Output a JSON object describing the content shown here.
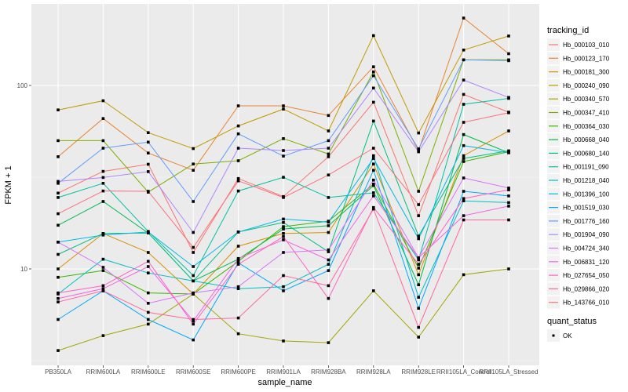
{
  "chart_data": {
    "type": "line",
    "title": "",
    "xlabel": "sample_name",
    "ylabel": "FPKM + 1",
    "y_scale": "log10",
    "ylim": [
      2.7,
      260
    ],
    "y_ticks": [
      10,
      100
    ],
    "y_tick_labels": [
      "10",
      "100"
    ],
    "grid": true,
    "legend_position": "right",
    "categories": [
      "PB350LA",
      "RRIM600LA",
      "RRIM600LE",
      "RRIM600SE",
      "RRIM600PE",
      "RRIM901LA",
      "RRIM928BA",
      "RRIM928LA",
      "RRIM928LE",
      "RRII105LA_Control",
      "RRII105LA_Stressed"
    ],
    "legend_title": "tracking_id",
    "shape_legend": {
      "title": "quant_status",
      "items": [
        "OK"
      ]
    },
    "series": [
      {
        "name": "Hb_000103_010",
        "color": "#F8766D",
        "values": [
          25.9,
          34.0,
          37.2,
          12.3,
          31.1,
          24.8,
          40.9,
          81.0,
          19.5,
          89.4,
          71.5
        ]
      },
      {
        "name": "Hb_000123_170",
        "color": "#EA8331",
        "values": [
          40.9,
          66.0,
          42.8,
          34.5,
          77.4,
          77.4,
          68.6,
          126.4,
          44.1,
          233.0,
          149.0
        ]
      },
      {
        "name": "Hb_000181_300",
        "color": "#D89000",
        "values": [
          10.0,
          15.6,
          12.3,
          7.3,
          13.3,
          15.6,
          15.8,
          37.3,
          9.3,
          41.4,
          56.5
        ]
      },
      {
        "name": "Hb_000240_090",
        "color": "#C09B00",
        "values": [
          73.6,
          82.5,
          55.3,
          45.3,
          60.2,
          74.4,
          56.5,
          187.0,
          55.1,
          156.0,
          186.0
        ]
      },
      {
        "name": "Hb_000340_570",
        "color": "#A3A500",
        "values": [
          3.59,
          4.33,
          5.0,
          7.3,
          4.43,
          4.05,
          3.96,
          7.6,
          4.25,
          9.3,
          10.0
        ]
      },
      {
        "name": "Hb_000347_410",
        "color": "#7CAE00",
        "values": [
          50.0,
          50.0,
          26.2,
          37.3,
          38.9,
          51.3,
          42.3,
          118.5,
          26.5,
          138.0,
          138.0
        ]
      },
      {
        "name": "Hb_000364_030",
        "color": "#39B600",
        "values": [
          9.0,
          9.8,
          7.4,
          7.3,
          11.0,
          17.0,
          18.2,
          29.0,
          10.1,
          38.5,
          43.5
        ]
      },
      {
        "name": "Hb_000668_040",
        "color": "#00BB4E",
        "values": [
          17.3,
          23.3,
          15.7,
          8.6,
          11.3,
          16.5,
          17.2,
          28.5,
          8.2,
          54.0,
          43.0
        ]
      },
      {
        "name": "Hb_000680_140",
        "color": "#00BF7D",
        "values": [
          12.0,
          15.6,
          15.7,
          8.6,
          15.9,
          17.9,
          12.4,
          64.0,
          15.1,
          40.0,
          44.0
        ]
      },
      {
        "name": "Hb_001191_090",
        "color": "#00C1A3",
        "values": [
          24.5,
          29.3,
          16.0,
          9.2,
          26.6,
          31.6,
          24.5,
          26.0,
          11.2,
          79.0,
          85.0
        ]
      },
      {
        "name": "Hb_001218_040",
        "color": "#00BFC4",
        "values": [
          7.3,
          11.3,
          9.5,
          8.6,
          7.8,
          8.0,
          10.6,
          41.4,
          7.0,
          23.5,
          23.0
        ]
      },
      {
        "name": "Hb_001396_100",
        "color": "#00B8E7",
        "values": [
          14.0,
          15.3,
          15.9,
          10.3,
          15.9,
          18.7,
          18.0,
          40.0,
          14.6,
          47.0,
          43.0
        ]
      },
      {
        "name": "Hb_001519_030",
        "color": "#00A9FF",
        "values": [
          5.3,
          7.6,
          5.3,
          4.1,
          10.8,
          7.6,
          9.8,
          34.5,
          6.1,
          26.5,
          25.0
        ]
      },
      {
        "name": "Hb_001776_160",
        "color": "#619CFF",
        "values": [
          29.3,
          45.5,
          49.1,
          23.3,
          54.5,
          41.2,
          50.0,
          113.0,
          45.1,
          138.0,
          136.5
        ]
      },
      {
        "name": "Hb_001904_090",
        "color": "#AE87FF",
        "values": [
          30.0,
          31.5,
          33.9,
          15.8,
          45.5,
          44.2,
          45.5,
          96.8,
          43.5,
          107.0,
          86.0
        ]
      },
      {
        "name": "Hb_004724_340",
        "color": "#DB72FB",
        "values": [
          14.0,
          10.2,
          6.5,
          7.4,
          8.0,
          12.3,
          12.7,
          30.5,
          11.5,
          31.3,
          27.6
        ]
      },
      {
        "name": "Hb_006831_120",
        "color": "#F564E3",
        "values": [
          6.9,
          7.8,
          10.3,
          5.2,
          11.4,
          14.4,
          11.2,
          25.0,
          11.5,
          19.5,
          22.0
        ]
      },
      {
        "name": "Hb_027654_050",
        "color": "#FF61C3",
        "values": [
          7.4,
          8.1,
          11.0,
          5.0,
          10.6,
          15.0,
          6.9,
          21.6,
          10.6,
          24.2,
          27.0
        ]
      },
      {
        "name": "Hb_029866_020",
        "color": "#FF699C",
        "values": [
          6.6,
          7.6,
          5.8,
          5.3,
          5.4,
          9.2,
          8.1,
          21.2,
          4.8,
          18.5,
          18.5
        ]
      },
      {
        "name": "Hb_143766_010",
        "color": "#FC717F",
        "values": [
          20.0,
          26.6,
          26.5,
          13.1,
          30.2,
          24.5,
          32.5,
          45.5,
          22.4,
          63.0,
          71.0
        ]
      }
    ]
  }
}
